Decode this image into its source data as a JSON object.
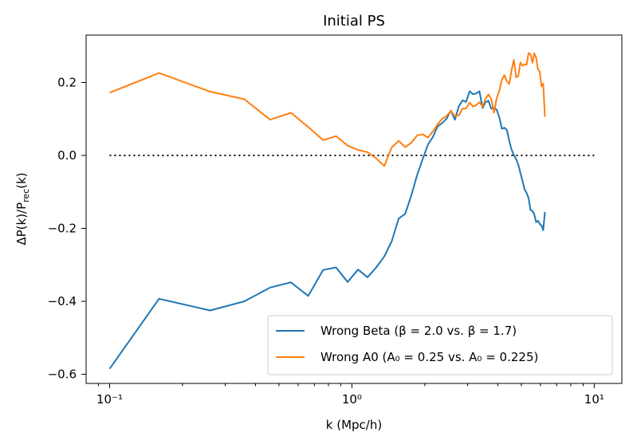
{
  "chart_data": {
    "type": "line",
    "title": "Initial PS",
    "xlabel": "k (Mpc/h)",
    "ylabel": "ΔP(k)/P_rec(k)",
    "xscale": "log",
    "xlim": [
      0.08,
      13
    ],
    "ylim": [
      -0.625,
      0.33
    ],
    "xticks": [
      0.1,
      1,
      10
    ],
    "xtick_labels": [
      "10⁻¹",
      "10⁰",
      "10¹"
    ],
    "yticks": [
      -0.6,
      -0.4,
      -0.2,
      0.0,
      0.2
    ],
    "ytick_labels": [
      "−0.6",
      "−0.4",
      "−0.2",
      "0.0",
      "0.2"
    ],
    "grid": false,
    "legend_position": "lower-right",
    "reference_line": {
      "style": "dotted",
      "color": "#000000",
      "y": 0.0,
      "x": [
        0.1,
        10
      ]
    },
    "series": [
      {
        "name": "Wrong Beta (β = 2.0 vs. β = 1.7)",
        "color": "#1f77b4",
        "x": [
          0.1,
          0.16,
          0.26,
          0.36,
          0.46,
          0.56,
          0.66,
          0.76,
          0.86,
          0.96,
          1.06,
          1.16,
          1.26,
          1.36,
          1.46,
          1.56,
          1.66,
          1.76,
          1.86,
          1.96,
          2.06,
          2.16,
          2.26,
          2.36,
          2.46,
          2.56,
          2.66,
          2.76,
          2.86,
          2.96,
          3.06,
          3.16,
          3.26,
          3.36,
          3.46,
          3.56,
          3.66,
          3.76,
          3.86,
          3.96,
          4.06,
          4.16,
          4.26,
          4.36,
          4.46,
          4.56,
          4.66,
          4.76,
          4.86,
          4.96,
          5.06,
          5.16,
          5.26,
          5.36,
          5.46,
          5.56,
          5.66,
          5.76,
          5.86,
          5.96,
          6.06,
          6.16,
          6.26
        ],
        "y": [
          -0.585,
          -0.393,
          -0.425,
          -0.4,
          -0.362,
          -0.348,
          -0.385,
          -0.314,
          -0.307,
          -0.347,
          -0.313,
          -0.334,
          -0.307,
          -0.277,
          -0.235,
          -0.173,
          -0.16,
          -0.109,
          -0.053,
          -0.01,
          0.03,
          0.051,
          0.08,
          0.089,
          0.101,
          0.123,
          0.098,
          0.134,
          0.151,
          0.147,
          0.176,
          0.168,
          0.17,
          0.176,
          0.13,
          0.146,
          0.15,
          0.128,
          0.131,
          0.125,
          0.104,
          0.073,
          0.076,
          0.07,
          0.04,
          0.016,
          0.001,
          -0.01,
          -0.025,
          -0.048,
          -0.07,
          -0.093,
          -0.103,
          -0.117,
          -0.15,
          -0.152,
          -0.162,
          -0.183,
          -0.179,
          -0.188,
          -0.192,
          -0.205,
          -0.155
        ]
      },
      {
        "name": "Wrong A0 (A₀ = 0.25 vs. A₀ = 0.225)",
        "color": "#ff7f0e",
        "x": [
          0.1,
          0.16,
          0.26,
          0.36,
          0.46,
          0.56,
          0.66,
          0.76,
          0.86,
          0.96,
          1.06,
          1.16,
          1.26,
          1.36,
          1.46,
          1.56,
          1.66,
          1.76,
          1.86,
          1.96,
          2.06,
          2.16,
          2.26,
          2.36,
          2.46,
          2.56,
          2.66,
          2.76,
          2.86,
          2.96,
          3.06,
          3.16,
          3.26,
          3.36,
          3.46,
          3.56,
          3.66,
          3.76,
          3.86,
          3.96,
          4.06,
          4.16,
          4.26,
          4.36,
          4.46,
          4.56,
          4.66,
          4.76,
          4.86,
          4.96,
          5.06,
          5.16,
          5.26,
          5.36,
          5.46,
          5.56,
          5.66,
          5.76,
          5.86,
          5.96,
          6.06,
          6.16,
          6.26
        ],
        "y": [
          0.172,
          0.226,
          0.175,
          0.154,
          0.098,
          0.117,
          0.078,
          0.042,
          0.053,
          0.027,
          0.015,
          0.009,
          -0.008,
          -0.029,
          0.022,
          0.04,
          0.023,
          0.035,
          0.055,
          0.058,
          0.049,
          0.066,
          0.086,
          0.101,
          0.108,
          0.122,
          0.108,
          0.11,
          0.128,
          0.129,
          0.145,
          0.134,
          0.138,
          0.146,
          0.134,
          0.155,
          0.167,
          0.155,
          0.117,
          0.158,
          0.178,
          0.208,
          0.22,
          0.203,
          0.196,
          0.234,
          0.262,
          0.214,
          0.218,
          0.255,
          0.246,
          0.25,
          0.249,
          0.281,
          0.277,
          0.254,
          0.28,
          0.268,
          0.236,
          0.23,
          0.189,
          0.197,
          0.106
        ]
      }
    ]
  }
}
